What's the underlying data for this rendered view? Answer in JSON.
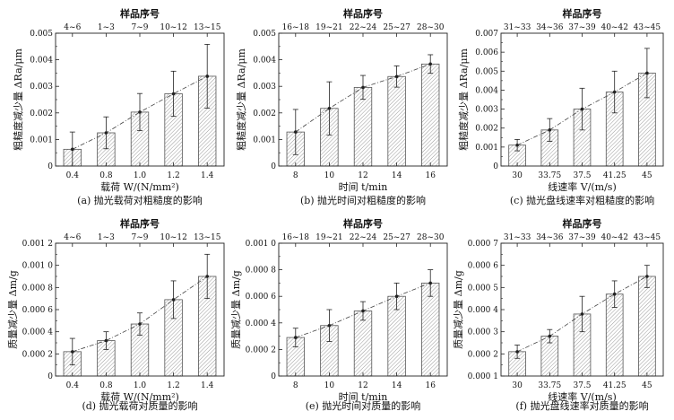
{
  "chart_data": [
    {
      "type": "bar",
      "caption": "(a) 抛光载荷对粗糙度的影响",
      "title": "样品序号",
      "xlabel": "载荷 W/(N/mm²)",
      "ylabel": "粗糙度减少量 ΔRa/μm",
      "categories": [
        "0.4",
        "0.8",
        "1.0",
        "1.2",
        "1.4"
      ],
      "top_labels": [
        "4~6",
        "1~3",
        "7~9",
        "10~12",
        "13~15"
      ],
      "values": [
        0.00063,
        0.00125,
        0.00203,
        0.00272,
        0.00338
      ],
      "errors": [
        0.00065,
        0.0006,
        0.0007,
        0.00085,
        0.0012
      ],
      "ylim": [
        0,
        0.005
      ],
      "yticks": [
        0,
        0.001,
        0.002,
        0.003,
        0.004,
        0.005
      ],
      "ytick_labels": [
        "0",
        "0.001",
        "0.002",
        "0.003",
        "0.004",
        "0.005"
      ]
    },
    {
      "type": "bar",
      "caption": "(b) 抛光时间对粗糙度的影响",
      "title": "样品序号",
      "xlabel": "时间 t/min",
      "ylabel": "粗糙度减少量 ΔRa/μm",
      "categories": [
        "8",
        "10",
        "12",
        "14",
        "16"
      ],
      "top_labels": [
        "16~18",
        "19~21",
        "22~24",
        "25~27",
        "28~30"
      ],
      "values": [
        0.00128,
        0.00217,
        0.00296,
        0.00337,
        0.00384
      ],
      "errors": [
        0.00085,
        0.001,
        0.00045,
        0.0004,
        0.00035
      ],
      "ylim": [
        0,
        0.005
      ],
      "yticks": [
        0,
        0.001,
        0.002,
        0.003,
        0.004,
        0.005
      ],
      "ytick_labels": [
        "0",
        "0.001",
        "0.002",
        "0.003",
        "0.004",
        "0.005"
      ]
    },
    {
      "type": "bar",
      "caption": "(c) 抛光盘线速率对粗糙度的影响",
      "title": "样品序号",
      "xlabel": "线速率 V/(m/s)",
      "ylabel": "粗糙度减少量 ΔRa/μm",
      "categories": [
        "30",
        "33.75",
        "37.5",
        "41.25",
        "45"
      ],
      "top_labels": [
        "31~33",
        "34~36",
        "37~39",
        "40~42",
        "43~45"
      ],
      "values": [
        0.0011,
        0.0019,
        0.003,
        0.0039,
        0.0049
      ],
      "errors": [
        0.0003,
        0.0006,
        0.0011,
        0.0011,
        0.0013
      ],
      "ylim": [
        0,
        0.007
      ],
      "yticks": [
        0,
        0.001,
        0.002,
        0.003,
        0.004,
        0.005,
        0.006,
        0.007
      ],
      "ytick_labels": [
        "0",
        "0.001",
        "0.002",
        "0.003",
        "0.004",
        "0.005",
        "0.006",
        "0.007"
      ]
    },
    {
      "type": "bar",
      "caption": "(d) 抛光载荷对质量的影响",
      "title": "样品序号",
      "xlabel": "载荷 W/(N/mm²)",
      "ylabel": "质量减少量 Δm/g",
      "categories": [
        "0.4",
        "0.8",
        "1.0",
        "1.2",
        "1.4"
      ],
      "top_labels": [
        "4~6",
        "1~3",
        "7~9",
        "10~12",
        "13~15"
      ],
      "values": [
        0.00022,
        0.00032,
        0.00047,
        0.00069,
        0.0009
      ],
      "errors": [
        0.00012,
        8e-05,
        0.0001,
        0.00017,
        0.0002
      ],
      "ylim": [
        0,
        0.0012
      ],
      "yticks": [
        0,
        0.0002,
        0.0004,
        0.0006,
        0.0008,
        0.001,
        0.0012
      ],
      "ytick_labels": [
        "0",
        "0.000 2",
        "0.000 4",
        "0.000 6",
        "0.000 8",
        "0.001 0",
        "0.001 2"
      ]
    },
    {
      "type": "bar",
      "caption": "(e) 抛光时间对质量的影响",
      "title": "样品序号",
      "xlabel": "时间 t/min",
      "ylabel": "质量减少量 Δm/g",
      "categories": [
        "8",
        "10",
        "12",
        "14",
        "16"
      ],
      "top_labels": [
        "16~18",
        "19~21",
        "22~24",
        "25~27",
        "28~30"
      ],
      "values": [
        0.00029,
        0.00038,
        0.00049,
        0.0006,
        0.0007
      ],
      "errors": [
        7e-05,
        0.00012,
        7e-05,
        0.0001,
        0.0001
      ],
      "ylim": [
        0,
        0.001
      ],
      "yticks": [
        0,
        0.0002,
        0.0004,
        0.0006,
        0.0008,
        0.001
      ],
      "ytick_labels": [
        "0",
        "0.000 2",
        "0.000 4",
        "0.000 6",
        "0.000 8",
        "0.001 0"
      ]
    },
    {
      "type": "bar",
      "caption": "(f) 抛光盘线速率对质量的影响",
      "title": "样品序号",
      "xlabel": "线速率 V/(m/s)",
      "ylabel": "质量减少量 Δm/g",
      "categories": [
        "30",
        "33.75",
        "37.5",
        "41.25",
        "45"
      ],
      "top_labels": [
        "31~33",
        "34~36",
        "37~39",
        "40~42",
        "43~45"
      ],
      "values": [
        0.00021,
        0.00028,
        0.00038,
        0.00047,
        0.00055
      ],
      "errors": [
        3e-05,
        3e-05,
        8e-05,
        6e-05,
        5e-05
      ],
      "ylim": [
        0.0001,
        0.0007
      ],
      "yticks": [
        0.0001,
        0.0002,
        0.0003,
        0.0004,
        0.0005,
        0.0006,
        0.0007
      ],
      "ytick_labels": [
        "0.000 1",
        "0.000 2",
        "0.000 3",
        "0.000 4",
        "0.000 5",
        "0.000 6",
        "0.000 7"
      ]
    }
  ]
}
